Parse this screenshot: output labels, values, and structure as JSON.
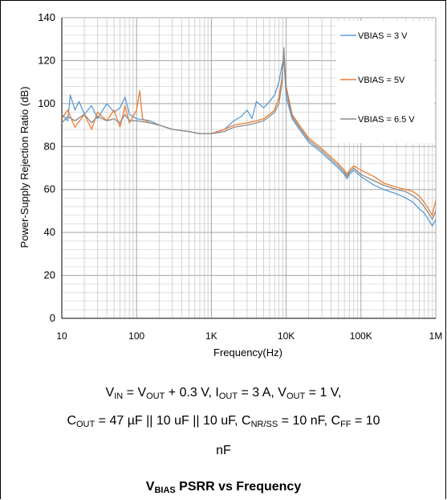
{
  "chart_data": {
    "type": "line",
    "xlabel": "Frequency(Hz)",
    "ylabel": "Power-Supply Rejection Ratio (dB)",
    "x_scale": "log",
    "xlim": [
      10,
      1000000
    ],
    "ylim": [
      0,
      140
    ],
    "grid": true,
    "legend_position": "right",
    "x_ticks": [
      {
        "value": 10,
        "label": "10"
      },
      {
        "value": 100,
        "label": "100"
      },
      {
        "value": 1000,
        "label": "1K"
      },
      {
        "value": 10000,
        "label": "10K"
      },
      {
        "value": 100000,
        "label": "100K"
      },
      {
        "value": 1000000,
        "label": "1M"
      }
    ],
    "y_ticks": [
      0,
      20,
      40,
      60,
      80,
      100,
      120,
      140
    ],
    "series": [
      {
        "name": "VBIAS = 3 V",
        "color": "#5b9bd5",
        "points": [
          [
            10,
            95
          ],
          [
            12,
            92
          ],
          [
            13,
            104
          ],
          [
            15,
            97
          ],
          [
            17,
            101
          ],
          [
            20,
            95
          ],
          [
            25,
            99
          ],
          [
            30,
            93
          ],
          [
            40,
            100
          ],
          [
            50,
            96
          ],
          [
            60,
            98
          ],
          [
            70,
            103
          ],
          [
            80,
            95
          ],
          [
            100,
            93
          ],
          [
            150,
            92
          ],
          [
            200,
            90
          ],
          [
            300,
            88
          ],
          [
            500,
            87
          ],
          [
            700,
            86
          ],
          [
            1000,
            86
          ],
          [
            1500,
            88
          ],
          [
            2000,
            92
          ],
          [
            2500,
            94
          ],
          [
            3000,
            97
          ],
          [
            3500,
            93
          ],
          [
            4000,
            101
          ],
          [
            5000,
            98
          ],
          [
            6000,
            101
          ],
          [
            7000,
            104
          ],
          [
            8000,
            110
          ],
          [
            8800,
            118
          ],
          [
            9300,
            121
          ],
          [
            10000,
            103
          ],
          [
            12000,
            93
          ],
          [
            15000,
            88
          ],
          [
            20000,
            82
          ],
          [
            30000,
            77
          ],
          [
            40000,
            73
          ],
          [
            50000,
            70
          ],
          [
            60000,
            67
          ],
          [
            65000,
            65
          ],
          [
            70000,
            67
          ],
          [
            80000,
            69
          ],
          [
            100000,
            66
          ],
          [
            150000,
            62
          ],
          [
            200000,
            60
          ],
          [
            300000,
            58
          ],
          [
            400000,
            56
          ],
          [
            500000,
            54
          ],
          [
            600000,
            51
          ],
          [
            700000,
            49
          ],
          [
            800000,
            46
          ],
          [
            900000,
            43
          ],
          [
            1000000,
            46
          ]
        ]
      },
      {
        "name": "VBIAS = 5V",
        "color": "#ed7d31",
        "points": [
          [
            10,
            93
          ],
          [
            12,
            97
          ],
          [
            15,
            89
          ],
          [
            20,
            95
          ],
          [
            25,
            88
          ],
          [
            30,
            96
          ],
          [
            40,
            92
          ],
          [
            50,
            97
          ],
          [
            60,
            89
          ],
          [
            70,
            99
          ],
          [
            80,
            91
          ],
          [
            100,
            97
          ],
          [
            110,
            106
          ],
          [
            120,
            93
          ],
          [
            150,
            91
          ],
          [
            200,
            90
          ],
          [
            300,
            88
          ],
          [
            500,
            87
          ],
          [
            700,
            86
          ],
          [
            1000,
            86
          ],
          [
            1500,
            88
          ],
          [
            2000,
            90
          ],
          [
            3000,
            91
          ],
          [
            4000,
            92
          ],
          [
            5000,
            93
          ],
          [
            6000,
            95
          ],
          [
            7000,
            97
          ],
          [
            8000,
            103
          ],
          [
            8800,
            112
          ],
          [
            9300,
            122
          ],
          [
            10000,
            108
          ],
          [
            12000,
            95
          ],
          [
            15000,
            90
          ],
          [
            20000,
            84
          ],
          [
            30000,
            79
          ],
          [
            40000,
            75
          ],
          [
            50000,
            72
          ],
          [
            60000,
            69
          ],
          [
            65000,
            67
          ],
          [
            70000,
            69
          ],
          [
            80000,
            71
          ],
          [
            100000,
            69
          ],
          [
            150000,
            66
          ],
          [
            200000,
            63
          ],
          [
            300000,
            61
          ],
          [
            400000,
            60
          ],
          [
            500000,
            59
          ],
          [
            600000,
            57
          ],
          [
            700000,
            54
          ],
          [
            800000,
            51
          ],
          [
            900000,
            48
          ],
          [
            1000000,
            55
          ]
        ]
      },
      {
        "name": "VBIAS = 6.5 V",
        "color": "#8c8c8c",
        "points": [
          [
            10,
            91
          ],
          [
            12,
            94
          ],
          [
            15,
            92
          ],
          [
            20,
            95
          ],
          [
            25,
            91
          ],
          [
            30,
            94
          ],
          [
            40,
            92
          ],
          [
            50,
            93
          ],
          [
            60,
            91
          ],
          [
            70,
            95
          ],
          [
            80,
            92
          ],
          [
            100,
            92
          ],
          [
            150,
            91
          ],
          [
            200,
            90
          ],
          [
            300,
            88
          ],
          [
            500,
            87
          ],
          [
            700,
            86
          ],
          [
            1000,
            86
          ],
          [
            1500,
            87
          ],
          [
            2000,
            89
          ],
          [
            3000,
            90
          ],
          [
            4000,
            91
          ],
          [
            5000,
            92
          ],
          [
            6000,
            94
          ],
          [
            7000,
            96
          ],
          [
            8000,
            100
          ],
          [
            8800,
            110
          ],
          [
            9300,
            126
          ],
          [
            10000,
            106
          ],
          [
            12000,
            94
          ],
          [
            15000,
            89
          ],
          [
            20000,
            83
          ],
          [
            30000,
            78
          ],
          [
            40000,
            74
          ],
          [
            50000,
            71
          ],
          [
            60000,
            68
          ],
          [
            65000,
            66
          ],
          [
            70000,
            68
          ],
          [
            80000,
            70
          ],
          [
            100000,
            67
          ],
          [
            150000,
            64
          ],
          [
            200000,
            62
          ],
          [
            300000,
            60
          ],
          [
            400000,
            59
          ],
          [
            500000,
            57
          ],
          [
            600000,
            55
          ],
          [
            700000,
            52
          ],
          [
            800000,
            49
          ],
          [
            900000,
            46
          ],
          [
            1000000,
            50
          ]
        ]
      }
    ]
  },
  "conditions": {
    "line1": {
      "v_in": "V",
      "v_in_sub": "IN",
      "eq1": " = V",
      "v_out_sub1": "OUT",
      "eq1_rest": " + 0.3 V, I",
      "i_out_sub": "OUT",
      "eq2": " = 3 A, V",
      "v_out_sub2": "OUT",
      "eq3": " = 1 V,"
    },
    "line2": {
      "c_out": "C",
      "c_out_sub": "OUT",
      "eq1": " = 47 µF || 10 uF || 10 uF, C",
      "c_nr_sub": "NR/SS",
      "eq2": " = 10 nF, C",
      "c_ff_sub": "FF",
      "eq3": " = 10"
    },
    "line3": "nF"
  },
  "caption": {
    "prefix": "V",
    "prefix_sub": "BIAS",
    "text": " PSRR vs Frequency"
  }
}
